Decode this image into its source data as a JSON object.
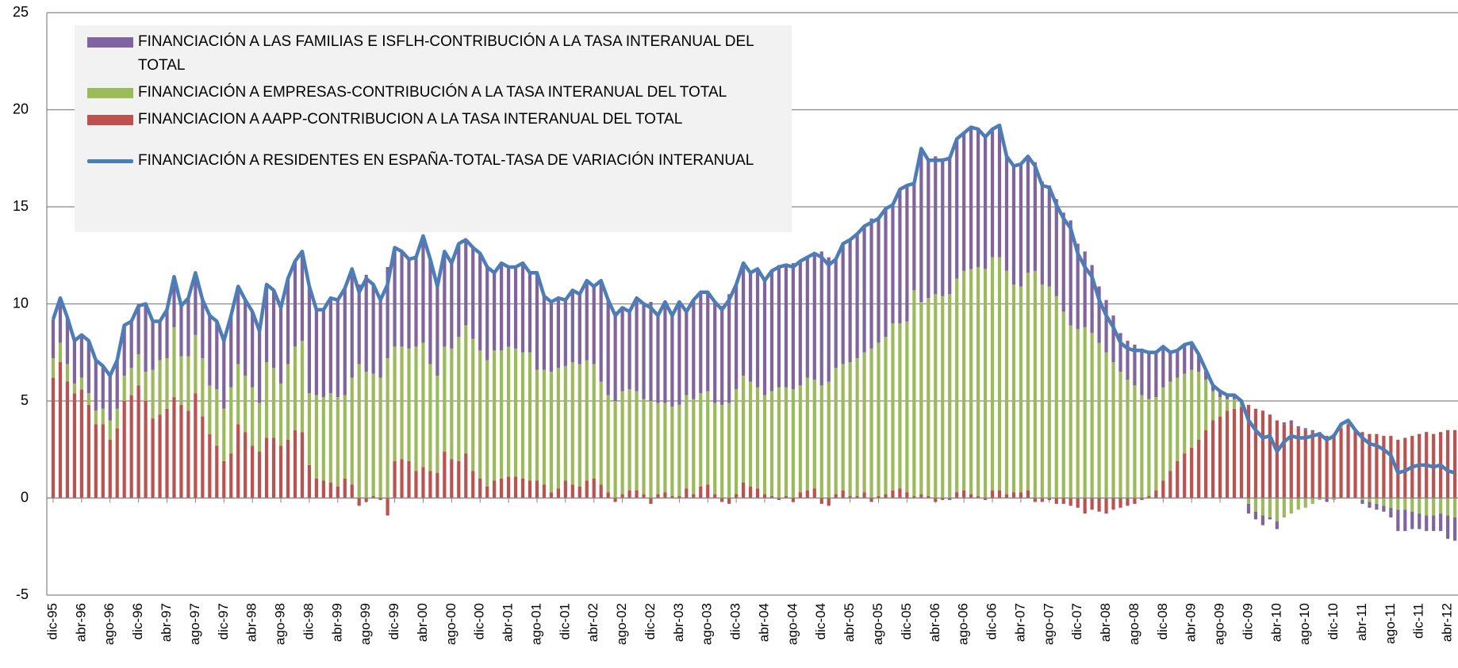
{
  "chart_data": {
    "type": "bar",
    "stacked": true,
    "categories": [
      "dic-95",
      null,
      null,
      null,
      "abr-96",
      null,
      null,
      null,
      "ago-96",
      null,
      null,
      null,
      "dic-96",
      null,
      null,
      null,
      "abr-97",
      null,
      null,
      null,
      "ago-97",
      null,
      null,
      null,
      "dic-97",
      null,
      null,
      null,
      "abr-98",
      null,
      null,
      null,
      "ago-98",
      null,
      null,
      null,
      "dic-98",
      null,
      null,
      null,
      "abr-99",
      null,
      null,
      null,
      "ago-99",
      null,
      null,
      null,
      "dic-99",
      null,
      null,
      null,
      "abr-00",
      null,
      null,
      null,
      "ago-00",
      null,
      null,
      null,
      "dic-00",
      null,
      null,
      null,
      "abr-01",
      null,
      null,
      null,
      "ago-01",
      null,
      null,
      null,
      "dic-01",
      null,
      null,
      null,
      "abr-02",
      null,
      null,
      null,
      "ago-02",
      null,
      null,
      null,
      "dic-02",
      null,
      null,
      null,
      "abr-03",
      null,
      null,
      null,
      "ago-03",
      null,
      null,
      null,
      "dic-03",
      null,
      null,
      null,
      "abr-04",
      null,
      null,
      null,
      "ago-04",
      null,
      null,
      null,
      "dic-04",
      null,
      null,
      null,
      "abr-05",
      null,
      null,
      null,
      "ago-05",
      null,
      null,
      null,
      "dic-05",
      null,
      null,
      null,
      "abr-06",
      null,
      null,
      null,
      "ago-06",
      null,
      null,
      null,
      "dic-06",
      null,
      null,
      null,
      "abr-07",
      null,
      null,
      null,
      "ago-07",
      null,
      null,
      null,
      "dic-07",
      null,
      null,
      null,
      "abr-08",
      null,
      null,
      null,
      "ago-08",
      null,
      null,
      null,
      "dic-08",
      null,
      null,
      null,
      "abr-09",
      null,
      null,
      null,
      "ago-09",
      null,
      null,
      null,
      "dic-09",
      null,
      null,
      null,
      "abr-10",
      null,
      null,
      null,
      "ago-10",
      null,
      null,
      null,
      "dic-10",
      null,
      null,
      null,
      "abr-11",
      null,
      null,
      null,
      "ago-11",
      null,
      null,
      null,
      "dic-11",
      null,
      null,
      null,
      "abr-12",
      null
    ],
    "series": [
      {
        "name": "FINANCIACION A AAPP-CONTRIBUCION A LA TASA INTERANUAL DEL TOTAL",
        "type": "bar",
        "color": "#c0504d",
        "values": [
          6.2,
          7.0,
          6.0,
          5.4,
          5.6,
          4.8,
          3.8,
          3.8,
          3.0,
          3.6,
          5.0,
          5.3,
          5.8,
          5.0,
          4.1,
          4.3,
          4.6,
          5.2,
          4.8,
          4.5,
          5.4,
          4.2,
          3.3,
          2.7,
          1.9,
          2.3,
          3.8,
          3.4,
          2.7,
          2.4,
          3.1,
          3.1,
          2.7,
          3.0,
          3.5,
          3.4,
          1.7,
          1.0,
          0.9,
          0.8,
          0.6,
          1.0,
          0.7,
          -0.4,
          -0.2,
          0.1,
          -0.1,
          -0.9,
          1.9,
          2.0,
          1.9,
          1.4,
          1.6,
          1.4,
          1.3,
          2.4,
          2.0,
          1.9,
          2.3,
          1.4,
          1.0,
          0.6,
          0.9,
          1.0,
          1.1,
          1.1,
          1.0,
          0.9,
          0.9,
          0.7,
          0.3,
          0.5,
          0.9,
          0.7,
          0.6,
          0.9,
          1.0,
          0.7,
          0.3,
          -0.2,
          0.2,
          0.4,
          0.4,
          0.2,
          -0.3,
          0.2,
          0.3,
          0.1,
          0.1,
          0.5,
          0.2,
          0.6,
          0.7,
          0.2,
          -0.2,
          -0.3,
          0.2,
          0.8,
          0.6,
          0.5,
          0.2,
          0.1,
          -0.1,
          0.1,
          -0.2,
          0.3,
          0.4,
          0.5,
          -0.3,
          -0.4,
          0.2,
          0.4,
          0.1,
          0.1,
          0.3,
          -0.2,
          0.1,
          0.2,
          0.4,
          0.5,
          0.3,
          0.1,
          0.2,
          0.1,
          -0.2,
          -0.1,
          -0.1,
          0.3,
          0.4,
          0.2,
          0.1,
          -0.1,
          0.4,
          0.4,
          0.2,
          0.3,
          0.3,
          0.4,
          -0.2,
          -0.2,
          -0.1,
          -0.3,
          -0.3,
          -0.4,
          -0.5,
          -0.8,
          -0.6,
          -0.7,
          -0.8,
          -0.6,
          -0.5,
          -0.4,
          -0.3,
          -0.1,
          0.1,
          0.4,
          0.9,
          1.4,
          1.9,
          2.3,
          2.6,
          3.0,
          3.5,
          4.0,
          4.2,
          4.5,
          4.6,
          4.7,
          4.8,
          4.6,
          4.5,
          4.3,
          4.0,
          3.8,
          3.8,
          3.6,
          3.5,
          3.4,
          3.3,
          3.2,
          3.2,
          3.6,
          3.8,
          3.5,
          3.4,
          3.3,
          3.3,
          3.2,
          3.2,
          3.0,
          3.1,
          3.2,
          3.3,
          3.4,
          3.3,
          3.4,
          3.5,
          3.5
        ]
      },
      {
        "name": "FINANCIACIÓN A EMPRESAS-CONTRIBUCIÓN A  LA TASA INTERANUAL DEL TOTAL",
        "type": "bar",
        "color": "#9bbb59",
        "values": [
          1.0,
          1.0,
          0.9,
          0.5,
          0.6,
          0.6,
          0.7,
          0.8,
          1.0,
          1.0,
          1.3,
          1.4,
          1.6,
          1.5,
          2.5,
          2.8,
          2.6,
          3.6,
          2.5,
          2.8,
          3.0,
          3.0,
          2.5,
          2.9,
          2.7,
          3.4,
          3.1,
          2.9,
          3.0,
          2.5,
          3.9,
          3.6,
          3.2,
          3.9,
          4.3,
          4.7,
          3.7,
          4.3,
          4.3,
          4.6,
          4.6,
          4.3,
          5.5,
          6.9,
          6.5,
          6.3,
          6.2,
          7.2,
          5.9,
          5.8,
          5.8,
          6.4,
          6.4,
          5.5,
          5.0,
          5.4,
          5.7,
          6.4,
          6.6,
          6.8,
          6.6,
          6.5,
          6.7,
          6.6,
          6.7,
          6.6,
          6.5,
          6.6,
          5.7,
          5.9,
          6.2,
          6.2,
          5.9,
          6.3,
          6.3,
          6.2,
          5.9,
          5.3,
          5.0,
          5.0,
          5.3,
          5.2,
          5.1,
          4.9,
          5.0,
          4.7,
          4.6,
          4.6,
          4.7,
          4.8,
          4.9,
          4.8,
          4.8,
          4.7,
          4.8,
          4.9,
          5.4,
          5.5,
          5.4,
          5.2,
          5.1,
          5.4,
          5.7,
          5.6,
          5.6,
          5.5,
          5.8,
          5.6,
          5.8,
          6.0,
          6.5,
          6.5,
          6.9,
          7.1,
          7.2,
          7.7,
          7.9,
          8.1,
          8.6,
          8.5,
          8.8,
          10.6,
          9.9,
          10.2,
          10.5,
          10.4,
          10.5,
          11.0,
          11.3,
          11.6,
          11.8,
          11.8,
          12.0,
          12.0,
          11.5,
          10.7,
          10.6,
          11.2,
          11.7,
          11.0,
          10.9,
          10.4,
          9.6,
          8.9,
          8.7,
          8.8,
          8.5,
          8.0,
          7.5,
          7.0,
          6.5,
          6.1,
          5.8,
          5.3,
          5.0,
          4.8,
          4.8,
          4.6,
          4.3,
          4.1,
          4.0,
          3.5,
          2.6,
          1.5,
          1.0,
          0.6,
          0.5,
          0.2,
          -0.3,
          -0.7,
          -0.9,
          -1.0,
          -1.2,
          -1.0,
          -0.8,
          -0.6,
          -0.5,
          -0.3,
          -0.1,
          0.0,
          -0.1,
          0.2,
          0.1,
          0.0,
          -0.1,
          -0.2,
          -0.3,
          -0.4,
          -0.5,
          -0.6,
          -0.6,
          -0.7,
          -0.8,
          -0.9,
          -0.9,
          -0.8,
          -0.9,
          -1.0
        ]
      },
      {
        "name": "FINANCIACIÓN A LAS FAMILIAS E ISFLH-CONTRIBUCIÓN A LA TASA INTERANUAL DEL TOTAL",
        "type": "bar",
        "color": "#8064a2",
        "values": [
          2.0,
          2.3,
          2.4,
          2.2,
          2.2,
          2.7,
          2.6,
          2.2,
          2.3,
          2.5,
          2.6,
          2.4,
          2.5,
          3.5,
          2.5,
          2.0,
          2.5,
          2.6,
          2.6,
          3.0,
          3.2,
          3.0,
          3.6,
          3.5,
          3.5,
          3.7,
          4.0,
          3.9,
          3.9,
          3.7,
          4.0,
          4.0,
          3.9,
          4.4,
          4.4,
          4.6,
          5.5,
          4.4,
          4.5,
          4.9,
          5.0,
          5.5,
          5.6,
          4.1,
          5.0,
          4.6,
          4.1,
          4.7,
          5.1,
          4.9,
          4.6,
          4.6,
          5.5,
          5.4,
          4.6,
          4.9,
          4.4,
          4.8,
          4.4,
          4.7,
          5.0,
          4.8,
          4.0,
          4.5,
          4.1,
          4.2,
          4.6,
          4.1,
          5.0,
          3.8,
          3.6,
          3.6,
          3.4,
          3.7,
          3.6,
          4.1,
          4.0,
          5.2,
          4.9,
          4.6,
          4.3,
          4.0,
          4.8,
          4.9,
          5.1,
          4.5,
          5.2,
          4.7,
          5.3,
          4.3,
          5.1,
          5.2,
          5.1,
          5.2,
          5.1,
          5.6,
          5.4,
          5.8,
          5.6,
          6.1,
          5.9,
          6.2,
          6.3,
          6.3,
          6.5,
          6.4,
          6.2,
          6.5,
          6.9,
          6.4,
          5.6,
          6.2,
          6.3,
          6.4,
          6.5,
          6.7,
          6.4,
          6.6,
          6.1,
          6.9,
          7.0,
          5.5,
          7.9,
          7.1,
          7.1,
          7.1,
          7.1,
          7.2,
          7.1,
          7.3,
          7.1,
          6.9,
          6.6,
          6.8,
          5.9,
          6.1,
          6.3,
          6.0,
          5.6,
          5.3,
          5.2,
          5.0,
          5.1,
          5.4,
          4.4,
          3.9,
          3.5,
          2.9,
          2.7,
          2.4,
          2.0,
          2.0,
          2.1,
          2.4,
          2.4,
          2.3,
          2.1,
          1.5,
          1.4,
          1.5,
          1.4,
          0.9,
          0.5,
          0.3,
          0.3,
          0.2,
          0.2,
          0.1,
          -0.5,
          -0.4,
          -0.5,
          -0.1,
          -0.4,
          0.1,
          0.2,
          0.1,
          0.1,
          0.1,
          0.1,
          -0.2,
          0.1,
          0.0,
          0.1,
          0.0,
          -0.2,
          -0.3,
          -0.3,
          -0.3,
          -0.5,
          -1.1,
          -1.1,
          -0.9,
          -0.8,
          -0.8,
          -0.8,
          -0.9,
          -1.2,
          -1.2
        ]
      },
      {
        "name": "FINANCIACIÓN A RESIDENTES EN ESPAÑA-TOTAL-TASA DE VARIACIÓN INTERANUAL",
        "type": "line",
        "color": "#4a7ebb",
        "values": [
          9.2,
          10.3,
          9.3,
          8.1,
          8.4,
          8.1,
          7.1,
          6.8,
          6.3,
          7.1,
          8.9,
          9.1,
          9.9,
          10.0,
          9.1,
          9.1,
          9.7,
          11.4,
          9.9,
          10.3,
          11.6,
          10.2,
          9.4,
          9.1,
          8.1,
          9.4,
          10.9,
          10.2,
          9.6,
          8.6,
          11.0,
          10.7,
          9.8,
          11.3,
          12.2,
          12.7,
          10.9,
          9.7,
          9.7,
          10.3,
          10.2,
          10.8,
          11.8,
          10.6,
          11.3,
          11.0,
          10.2,
          11.0,
          12.9,
          12.7,
          12.3,
          12.4,
          13.5,
          12.3,
          10.9,
          12.7,
          12.1,
          13.1,
          13.3,
          12.9,
          12.6,
          11.9,
          11.6,
          12.1,
          11.9,
          11.9,
          12.1,
          11.6,
          11.6,
          10.4,
          10.1,
          10.3,
          10.2,
          10.7,
          10.5,
          11.2,
          10.9,
          11.2,
          10.2,
          9.4,
          9.8,
          9.6,
          10.3,
          10.0,
          9.8,
          9.4,
          10.1,
          9.4,
          10.1,
          9.6,
          10.2,
          10.6,
          10.6,
          10.1,
          9.7,
          10.2,
          11.0,
          12.1,
          11.6,
          11.8,
          11.2,
          11.7,
          11.9,
          12.0,
          11.9,
          12.2,
          12.4,
          12.6,
          12.4,
          12.0,
          12.3,
          13.1,
          13.3,
          13.6,
          14.0,
          14.2,
          14.4,
          14.9,
          15.1,
          15.9,
          16.1,
          16.2,
          18.0,
          17.4,
          17.4,
          17.4,
          17.5,
          18.5,
          18.8,
          19.1,
          19.0,
          18.6,
          19.0,
          19.2,
          17.6,
          17.1,
          17.2,
          17.6,
          17.1,
          16.1,
          16.0,
          15.1,
          14.4,
          13.9,
          12.6,
          11.9,
          11.4,
          10.2,
          9.4,
          8.8,
          8.0,
          7.7,
          7.6,
          7.6,
          7.5,
          7.5,
          7.8,
          7.5,
          7.6,
          7.9,
          8.0,
          7.4,
          6.6,
          5.8,
          5.5,
          5.3,
          5.3,
          5.0,
          4.0,
          3.5,
          3.1,
          3.2,
          2.4,
          2.9,
          3.2,
          3.1,
          3.1,
          3.2,
          3.3,
          3.0,
          3.2,
          3.8,
          4.0,
          3.5,
          3.1,
          2.8,
          2.7,
          2.5,
          2.2,
          1.3,
          1.4,
          1.6,
          1.7,
          1.7,
          1.6,
          1.7,
          1.4,
          1.3
        ]
      }
    ],
    "legend_order": [
      2,
      1,
      0,
      3
    ],
    "ylim": [
      -5,
      25
    ],
    "yticks": [
      -5,
      0,
      5,
      10,
      15,
      20,
      25
    ],
    "grid": true
  }
}
